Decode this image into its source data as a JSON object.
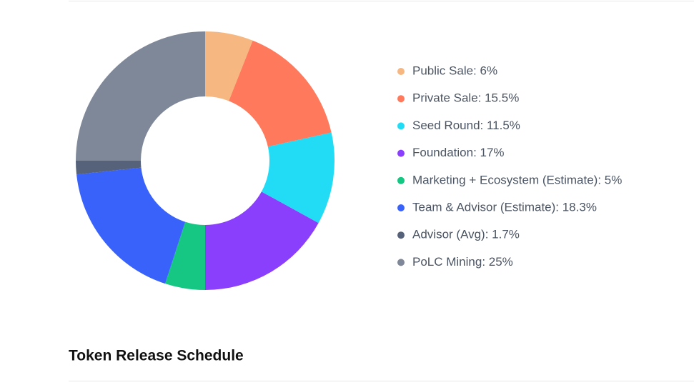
{
  "chart_data": {
    "type": "donut",
    "labels": [
      "Public Sale: 6%",
      "Private Sale: 15.5%",
      "Seed Round: 11.5%",
      "Foundation: 17%",
      "Marketing + Ecosystem (Estimate): 5%",
      "Team & Advisor (Estimate): 18.3%",
      "Advisor (Avg): 1.7%",
      "PoLC Mining: 25%"
    ],
    "values": [
      6,
      15.5,
      11.5,
      17,
      5,
      18.3,
      1.7,
      25
    ],
    "colors": [
      "#f6b880",
      "#ff7a5c",
      "#22dcf5",
      "#8a3ffc",
      "#16c784",
      "#3862fa",
      "#56627a",
      "#7f8898"
    ]
  },
  "section_title": "Token Release Schedule"
}
